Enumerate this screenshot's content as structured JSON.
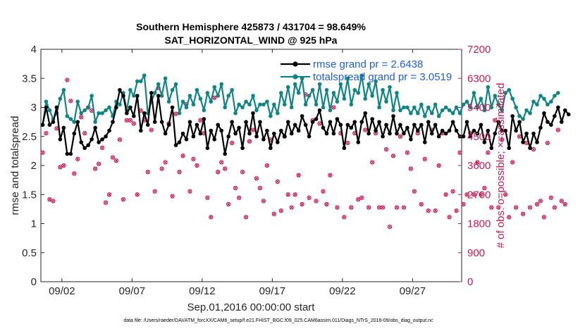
{
  "chart_data": {
    "type": "line",
    "title": "Southern Hemisphere 425873 / 431704 = 98.649%",
    "subtitle": "SAT_HORIZONTAL_WIND @ 925 hPa",
    "xlabel": "Sep.01,2016 00:00:00 start",
    "ylabel": "rmse and totalspread",
    "y2label": "# of obs: o=possible; ×=assimilated",
    "footer": "data file: /Users/raeder/DAI/ATM_forcXX/CAM6_setup/f.e21.FHIST_BGC.f09_025.CAM6assim.011/Diags_NTrS_2016-09/obs_diag_output.nc",
    "xlim": [
      0.5,
      30.5
    ],
    "ylim": [
      0,
      4
    ],
    "y2lim": [
      0,
      7200
    ],
    "x_ticks": [
      2,
      7,
      12,
      17,
      22,
      27
    ],
    "x_tick_labels": [
      "09/02",
      "09/07",
      "09/12",
      "09/17",
      "09/22",
      "09/27"
    ],
    "y_ticks": [
      0,
      0.5,
      1,
      1.5,
      2,
      2.5,
      3,
      3.5,
      4
    ],
    "y_tick_labels": [
      "0",
      "0.5",
      "1",
      "1.5",
      "2",
      "2.5",
      "3",
      "3.5",
      "4"
    ],
    "y2_ticks": [
      0,
      900,
      1800,
      2700,
      3600,
      4500,
      5400,
      6300,
      7200
    ],
    "y2_tick_labels": [
      "0",
      "900",
      "1800",
      "2700",
      "3600",
      "4500",
      "5400",
      "6300",
      "7200"
    ],
    "colors": {
      "rmse": "#000000",
      "spread": "#0f8585",
      "obs": "#cc1a52",
      "legend_text": "#1f5fe0"
    },
    "series": [
      {
        "name": "rmse grand pr = 2.6438",
        "axis": "left",
        "x_start": 0.625,
        "x_step": 0.25,
        "values": [
          2.7,
          3.0,
          2.7,
          2.75,
          3.0,
          2.45,
          2.65,
          2.2,
          2.2,
          2.55,
          2.75,
          2.4,
          2.3,
          2.35,
          2.45,
          2.65,
          2.4,
          2.45,
          2.5,
          2.6,
          2.75,
          3.0,
          3.3,
          3.2,
          2.9,
          3.0,
          2.85,
          3.2,
          2.6,
          2.9,
          2.7,
          3.25,
          2.75,
          3.2,
          2.75,
          2.55,
          2.7,
          3.0,
          2.35,
          2.4,
          2.55,
          2.45,
          2.75,
          2.5,
          2.7,
          2.55,
          2.8,
          2.3,
          2.6,
          2.45,
          2.7,
          2.6,
          2.2,
          2.5,
          2.75,
          2.55,
          2.65,
          2.3,
          2.75,
          2.55,
          2.9,
          2.5,
          2.75,
          2.45,
          2.6,
          2.3,
          2.55,
          2.4,
          2.6,
          2.5,
          2.75,
          2.55,
          2.7,
          2.6,
          2.85,
          2.7,
          2.5,
          2.75,
          2.8,
          2.95,
          2.65,
          2.55,
          2.75,
          2.55,
          2.8,
          2.7,
          2.3,
          2.7,
          2.65,
          2.75,
          2.4,
          2.75,
          2.9,
          2.55,
          2.8,
          2.6,
          2.75,
          2.5,
          2.7,
          2.55,
          2.85,
          2.55,
          2.7,
          2.55,
          2.65,
          2.45,
          2.7,
          2.6,
          2.7,
          2.4,
          2.75,
          2.55,
          2.7,
          2.5,
          2.6,
          2.55,
          2.6,
          2.75,
          2.6,
          2.5,
          2.5,
          2.75,
          2.5,
          2.6,
          2.55,
          2.7,
          2.4,
          2.6,
          2.3,
          2.55,
          2.75,
          2.6,
          2.6,
          2.3,
          2.85,
          2.6,
          2.75,
          2.4,
          2.55,
          2.3,
          2.55,
          2.4,
          2.65,
          2.9,
          2.75,
          2.7,
          2.85,
          3.0,
          2.75,
          2.95,
          2.88
        ]
      },
      {
        "name": "totalspread grand pr = 3.0519",
        "axis": "left",
        "x_start": 0.625,
        "x_step": 0.25,
        "values": [
          2.7,
          3.1,
          2.95,
          2.8,
          2.9,
          3.15,
          3.3,
          2.85,
          2.8,
          2.75,
          3.1,
          2.9,
          2.95,
          3.0,
          3.2,
          2.75,
          2.9,
          2.9,
          2.95,
          3.0,
          2.85,
          3.1,
          3.05,
          3.25,
          2.95,
          3.3,
          3.2,
          3.45,
          3.45,
          3.55,
          2.9,
          3.1,
          3.25,
          3.4,
          3.2,
          3.5,
          3.1,
          3.3,
          3.4,
          2.9,
          3.1,
          3.0,
          3.2,
          3.05,
          3.3,
          3.15,
          2.95,
          3.25,
          3.1,
          3.35,
          3.2,
          3.4,
          3.0,
          3.2,
          3.3,
          2.9,
          3.05,
          3.0,
          3.1,
          3.05,
          3.2,
          2.95,
          3.05,
          3.05,
          3.1,
          2.85,
          3.05,
          2.9,
          3.25,
          3.05,
          3.35,
          3.0,
          3.4,
          3.25,
          3.5,
          3.05,
          3.2,
          3.3,
          3.05,
          3.4,
          3.0,
          3.3,
          2.95,
          3.25,
          3.1,
          3.4,
          3.15,
          3.5,
          3.05,
          3.3,
          3.25,
          3.55,
          3.15,
          3.4,
          3.2,
          3.45,
          3.0,
          3.3,
          3.1,
          3.35,
          2.95,
          3.25,
          2.95,
          3.0,
          3.0,
          2.9,
          3.0,
          2.9,
          3.05,
          2.85,
          3.0,
          2.9,
          3.05,
          2.85,
          2.95,
          3.0,
          2.95,
          2.9,
          3.0,
          2.9,
          3.05,
          3.1,
          3.0,
          3.25,
          3.0,
          3.15,
          2.95,
          3.35,
          3.0,
          3.2,
          3.05,
          2.95,
          3.25,
          3.3,
          3.15,
          3.0,
          2.85,
          2.8,
          2.95,
          2.9,
          3.1,
          3.05,
          3.2,
          3.15,
          3.05,
          3.1,
          3.2,
          3.25
        ]
      },
      {
        "name": "# of obs (possible / assimilated)",
        "axis": "right",
        "x_start": 0.625,
        "x_step": 0.25,
        "values": [
          4000,
          4600,
          2550,
          2500,
          4750,
          3550,
          3600,
          6250,
          5600,
          3350,
          3800,
          5100,
          4600,
          5400,
          5300,
          3500,
          3650,
          4150,
          2450,
          2700,
          3850,
          3750,
          4400,
          2550,
          5000,
          5000,
          4900,
          2700,
          5300,
          5000,
          3400,
          4700,
          2800,
          6000,
          3500,
          3700,
          4900,
          2650,
          5200,
          3400,
          3900,
          5500,
          2800,
          3800,
          3600,
          5000,
          4600,
          2600,
          2000,
          5700,
          3400,
          3700,
          3500,
          2400,
          4300,
          2900,
          2600,
          3400,
          2000,
          4350,
          4700,
          3200,
          2900,
          2500,
          3600,
          4400,
          2100,
          3100,
          2200,
          4500,
          2700,
          2300,
          2700,
          3300,
          2400,
          5800,
          2600,
          5000,
          2500,
          4900,
          2800,
          2400,
          3300,
          5400,
          2300,
          4600,
          2000,
          4300,
          2300,
          4600,
          2550,
          2600,
          4700,
          2300,
          3700,
          4600,
          2300,
          2300,
          4100,
          1700,
          3900,
          2300,
          4500,
          2300,
          4000,
          3500,
          2800,
          4600,
          2400,
          3800,
          2200,
          4700,
          2200,
          3600,
          4600,
          2700,
          2000,
          2800,
          2200,
          4000,
          2400,
          2700,
          4600,
          2700,
          3700,
          2700,
          2900,
          4000,
          2300,
          5000,
          2300,
          4400,
          2700,
          2000,
          3700,
          2300,
          4500,
          2100,
          4300,
          2300,
          4100,
          2400,
          2500,
          2000,
          4300,
          2600,
          2300,
          4700,
          2500,
          2400
        ]
      }
    ],
    "legend": {
      "placement": "top-right",
      "entries": [
        "rmse grand pr = 2.6438",
        "totalspread grand pr = 3.0519"
      ]
    }
  }
}
